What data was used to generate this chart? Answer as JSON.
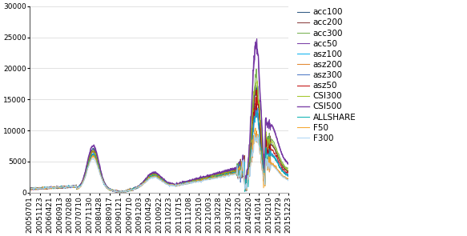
{
  "title": "",
  "ylim": [
    0,
    30000
  ],
  "yticks": [
    0,
    5000,
    10000,
    15000,
    20000,
    25000,
    30000
  ],
  "series_order": [
    "acc100",
    "acc200",
    "acc300",
    "acc50",
    "asz100",
    "asz200",
    "asz300",
    "asz50",
    "CSI300",
    "CSI500",
    "ALLSHARE",
    "F50",
    "F300"
  ],
  "series": {
    "acc100": {
      "color": "#1F4E79",
      "lw": 0.8
    },
    "acc200": {
      "color": "#833232",
      "lw": 0.8
    },
    "acc300": {
      "color": "#70ad47",
      "lw": 0.8
    },
    "acc50": {
      "color": "#7030a0",
      "lw": 0.8
    },
    "asz100": {
      "color": "#00b0f0",
      "lw": 0.8
    },
    "asz200": {
      "color": "#e08020",
      "lw": 0.8
    },
    "asz300": {
      "color": "#4472c4",
      "lw": 0.8
    },
    "asz50": {
      "color": "#c00000",
      "lw": 0.8
    },
    "CSI300": {
      "color": "#9dc219",
      "lw": 0.8
    },
    "CSI500": {
      "color": "#7030a0",
      "lw": 1.0
    },
    "ALLSHARE": {
      "color": "#00b0b0",
      "lw": 0.8
    },
    "F50": {
      "color": "#f4a020",
      "lw": 0.8
    },
    "F300": {
      "color": "#aad4f5",
      "lw": 0.8
    }
  },
  "xtick_labels": [
    "20050701",
    "20051123",
    "20060421",
    "20060913",
    "20070208",
    "20070710",
    "20071130",
    "20080428",
    "20080917",
    "20090121",
    "20090710",
    "20091203",
    "20100429",
    "20100922",
    "20110223",
    "20110715",
    "20111208",
    "20120510",
    "20121003",
    "20130228",
    "20130726",
    "20131220",
    "20140520",
    "20141014",
    "20150210",
    "20150729",
    "20151223"
  ],
  "background_color": "#ffffff",
  "legend_fontsize": 7.5,
  "tick_fontsize": 6.5
}
